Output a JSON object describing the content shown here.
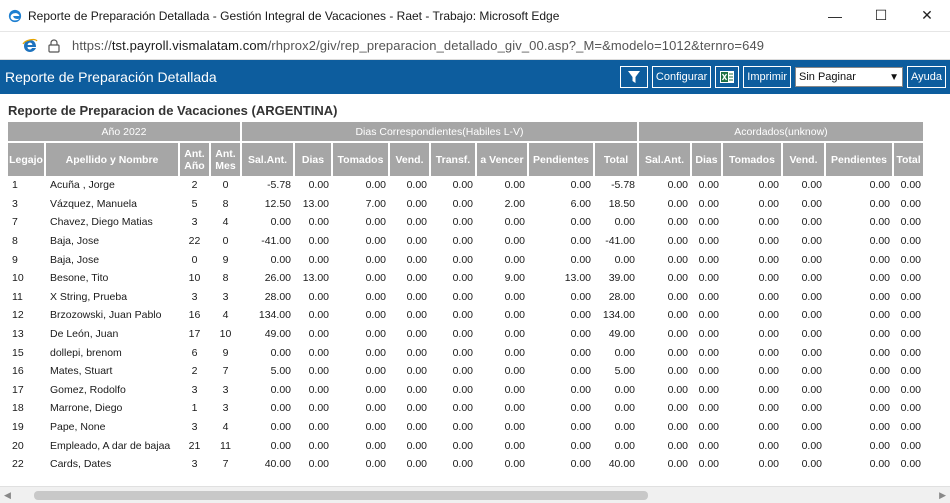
{
  "window": {
    "title": "Reporte de Preparación Detallada - Gestión Integral de Vacaciones - Raet - Trabajo: Microsoft Edge",
    "controls": {
      "minimize": "—",
      "maximize": "☐",
      "close": "✕"
    }
  },
  "address": {
    "scheme": "https://",
    "host": "tst.payroll.vismalatam.com",
    "path": "/rhprox2/giv/rep_preparacion_detallado_giv_00.asp?_M=&modelo=1012&ternro=649"
  },
  "appbar": {
    "title": "Reporte de Preparación Detallada",
    "filter_icon": "filter-icon",
    "configurar_label": "Configurar",
    "excel_icon": "excel-icon",
    "imprimir_label": "Imprimir",
    "paginar_value": "Sin Paginar",
    "ayuda_label": "Ayuda"
  },
  "report": {
    "title": "Reporte de Preparacion de Vacaciones (ARGENTINA)",
    "groups": {
      "year": "Año 2022",
      "dias": "Dias Correspondientes(Habiles L-V)",
      "acordados": "Acordados(unknow)"
    },
    "columns": {
      "legajo": "Legajo",
      "apellido": "Apellido y Nombre",
      "ant_anio": "Ant. Año",
      "ant_mes": "Ant. Mes",
      "sal_ant": "Sal.Ant.",
      "dias": "Dias",
      "tomados": "Tomados",
      "vend": "Vend.",
      "transf": "Transf.",
      "a_vencer": "a Vencer",
      "pendientes": "Pendientes",
      "total": "Total",
      "ac_sal_ant": "Sal.Ant.",
      "ac_dias": "Dias",
      "ac_tomados": "Tomados",
      "ac_vend": "Vend.",
      "ac_pendientes": "Pendientes",
      "ac_total": "Total"
    },
    "rows": [
      [
        "1",
        "Acuña , Jorge",
        "2",
        "0",
        "-5.78",
        "0.00",
        "0.00",
        "0.00",
        "0.00",
        "0.00",
        "0.00",
        "-5.78",
        "0.00",
        "0.00",
        "0.00",
        "0.00",
        "0.00",
        "0.00"
      ],
      [
        "3",
        "Vázquez, Manuela",
        "5",
        "8",
        "12.50",
        "13.00",
        "7.00",
        "0.00",
        "0.00",
        "2.00",
        "6.00",
        "18.50",
        "0.00",
        "0.00",
        "0.00",
        "0.00",
        "0.00",
        "0.00"
      ],
      [
        "7",
        "Chavez, Diego Matias",
        "3",
        "4",
        "0.00",
        "0.00",
        "0.00",
        "0.00",
        "0.00",
        "0.00",
        "0.00",
        "0.00",
        "0.00",
        "0.00",
        "0.00",
        "0.00",
        "0.00",
        "0.00"
      ],
      [
        "8",
        "Baja, Jose",
        "22",
        "0",
        "-41.00",
        "0.00",
        "0.00",
        "0.00",
        "0.00",
        "0.00",
        "0.00",
        "-41.00",
        "0.00",
        "0.00",
        "0.00",
        "0.00",
        "0.00",
        "0.00"
      ],
      [
        "9",
        "Baja, Jose",
        "0",
        "9",
        "0.00",
        "0.00",
        "0.00",
        "0.00",
        "0.00",
        "0.00",
        "0.00",
        "0.00",
        "0.00",
        "0.00",
        "0.00",
        "0.00",
        "0.00",
        "0.00"
      ],
      [
        "10",
        "Besone, Tito",
        "10",
        "8",
        "26.00",
        "13.00",
        "0.00",
        "0.00",
        "0.00",
        "9.00",
        "13.00",
        "39.00",
        "0.00",
        "0.00",
        "0.00",
        "0.00",
        "0.00",
        "0.00"
      ],
      [
        "11",
        "X String, Prueba",
        "3",
        "3",
        "28.00",
        "0.00",
        "0.00",
        "0.00",
        "0.00",
        "0.00",
        "0.00",
        "28.00",
        "0.00",
        "0.00",
        "0.00",
        "0.00",
        "0.00",
        "0.00"
      ],
      [
        "12",
        "Brzozowski, Juan Pablo",
        "16",
        "4",
        "134.00",
        "0.00",
        "0.00",
        "0.00",
        "0.00",
        "0.00",
        "0.00",
        "134.00",
        "0.00",
        "0.00",
        "0.00",
        "0.00",
        "0.00",
        "0.00"
      ],
      [
        "13",
        "De León, Juan",
        "17",
        "10",
        "49.00",
        "0.00",
        "0.00",
        "0.00",
        "0.00",
        "0.00",
        "0.00",
        "49.00",
        "0.00",
        "0.00",
        "0.00",
        "0.00",
        "0.00",
        "0.00"
      ],
      [
        "15",
        "dollepi, brenom",
        "6",
        "9",
        "0.00",
        "0.00",
        "0.00",
        "0.00",
        "0.00",
        "0.00",
        "0.00",
        "0.00",
        "0.00",
        "0.00",
        "0.00",
        "0.00",
        "0.00",
        "0.00"
      ],
      [
        "16",
        "Mates, Stuart",
        "2",
        "7",
        "5.00",
        "0.00",
        "0.00",
        "0.00",
        "0.00",
        "0.00",
        "0.00",
        "5.00",
        "0.00",
        "0.00",
        "0.00",
        "0.00",
        "0.00",
        "0.00"
      ],
      [
        "17",
        "Gomez, Rodolfo",
        "3",
        "3",
        "0.00",
        "0.00",
        "0.00",
        "0.00",
        "0.00",
        "0.00",
        "0.00",
        "0.00",
        "0.00",
        "0.00",
        "0.00",
        "0.00",
        "0.00",
        "0.00"
      ],
      [
        "18",
        "Marrone, Diego",
        "1",
        "3",
        "0.00",
        "0.00",
        "0.00",
        "0.00",
        "0.00",
        "0.00",
        "0.00",
        "0.00",
        "0.00",
        "0.00",
        "0.00",
        "0.00",
        "0.00",
        "0.00"
      ],
      [
        "19",
        "Pape, None",
        "3",
        "4",
        "0.00",
        "0.00",
        "0.00",
        "0.00",
        "0.00",
        "0.00",
        "0.00",
        "0.00",
        "0.00",
        "0.00",
        "0.00",
        "0.00",
        "0.00",
        "0.00"
      ],
      [
        "20",
        "Empleado, A dar de bajaa",
        "21",
        "11",
        "0.00",
        "0.00",
        "0.00",
        "0.00",
        "0.00",
        "0.00",
        "0.00",
        "0.00",
        "0.00",
        "0.00",
        "0.00",
        "0.00",
        "0.00",
        "0.00"
      ],
      [
        "22",
        "Cards, Dates",
        "3",
        "7",
        "40.00",
        "0.00",
        "0.00",
        "0.00",
        "0.00",
        "0.00",
        "0.00",
        "40.00",
        "0.00",
        "0.00",
        "0.00",
        "0.00",
        "0.00",
        "0.00"
      ]
    ]
  }
}
